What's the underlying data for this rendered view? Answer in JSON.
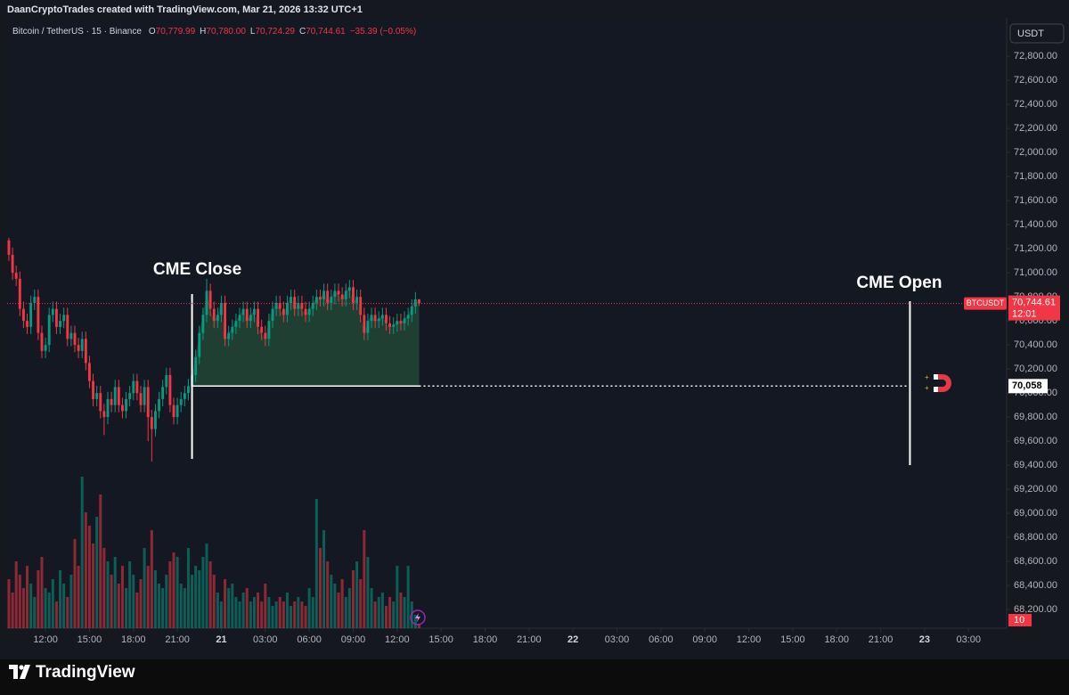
{
  "header": {
    "attribution": "DaanCryptoTrades created with TradingView.com, Mar 21, 2026 13:32 UTC+1",
    "currency_button": "USDT"
  },
  "footer": {
    "logo_text": "TradingView"
  },
  "chart_data": {
    "type": "candlestick",
    "symbol_line": "Bitcoin / TetherUS · 15 · Binance",
    "ohlc_legend": [
      {
        "key": "O",
        "text": "70,779.99"
      },
      {
        "key": "H",
        "text": "70,780.00"
      },
      {
        "key": "L",
        "text": "70,724.29"
      },
      {
        "key": "C",
        "text": "70,744.61"
      }
    ],
    "change": "−35.39 (−0.05%)",
    "up_color": "#089981",
    "down_color": "#f23645",
    "grid": false,
    "xlim": [
      -2.62,
      65.6
    ],
    "ylim": [
      68045,
      73120
    ],
    "volume_lim": [
      0,
      1370
    ],
    "xticks": [
      {
        "value": 0,
        "label": "12:00"
      },
      {
        "value": 3,
        "label": "15:00"
      },
      {
        "value": 6,
        "label": "18:00"
      },
      {
        "value": 9,
        "label": "21:00"
      },
      {
        "value": 12,
        "label": "21"
      },
      {
        "value": 15,
        "label": "03:00"
      },
      {
        "value": 18,
        "label": "06:00"
      },
      {
        "value": 21,
        "label": "09:00"
      },
      {
        "value": 24,
        "label": "12:00"
      },
      {
        "value": 27,
        "label": "15:00"
      },
      {
        "value": 30,
        "label": "18:00"
      },
      {
        "value": 33,
        "label": "21:00"
      },
      {
        "value": 36,
        "label": "22"
      },
      {
        "value": 39,
        "label": "03:00"
      },
      {
        "value": 42,
        "label": "06:00"
      },
      {
        "value": 45,
        "label": "09:00"
      },
      {
        "value": 48,
        "label": "12:00"
      },
      {
        "value": 51,
        "label": "15:00"
      },
      {
        "value": 54,
        "label": "18:00"
      },
      {
        "value": 57,
        "label": "21:00"
      },
      {
        "value": 60,
        "label": "23"
      },
      {
        "value": 63,
        "label": "03:00"
      }
    ],
    "yticks": [
      {
        "value": 68200,
        "label": "68,200.00"
      },
      {
        "value": 68400,
        "label": "68,400.00"
      },
      {
        "value": 68600,
        "label": "68,600.00"
      },
      {
        "value": 68800,
        "label": "68,800.00"
      },
      {
        "value": 69000,
        "label": "69,000.00"
      },
      {
        "value": 69200,
        "label": "69,200.00"
      },
      {
        "value": 69400,
        "label": "69,400.00"
      },
      {
        "value": 69600,
        "label": "69,600.00"
      },
      {
        "value": 69800,
        "label": "69,800.00"
      },
      {
        "value": 70000,
        "label": "70,000.00"
      },
      {
        "value": 70200,
        "label": "70,200.00"
      },
      {
        "value": 70400,
        "label": "70,400.00"
      },
      {
        "value": 70600,
        "label": "70,600.00"
      },
      {
        "value": 70800,
        "label": "70,800.00"
      },
      {
        "value": 71000,
        "label": "71,000.00"
      },
      {
        "value": 71200,
        "label": "71,200.00"
      },
      {
        "value": 71400,
        "label": "71,400.00"
      },
      {
        "value": 71600,
        "label": "71,600.00"
      },
      {
        "value": 71800,
        "label": "71,800.00"
      },
      {
        "value": 72000,
        "label": "72,000.00"
      },
      {
        "value": 72200,
        "label": "72,200.00"
      },
      {
        "value": 72400,
        "label": "72,400.00"
      },
      {
        "value": 72600,
        "label": "72,600.00"
      },
      {
        "value": 72800,
        "label": "72,800.00"
      }
    ],
    "x": [
      -2.5,
      -2.25,
      -2,
      -1.75,
      -1.5,
      -1.25,
      -1,
      -0.75,
      -0.5,
      -0.25,
      0,
      0.25,
      0.5,
      0.75,
      1,
      1.25,
      1.5,
      1.75,
      2,
      2.25,
      2.5,
      2.75,
      3,
      3.25,
      3.5,
      3.75,
      4,
      4.25,
      4.5,
      4.75,
      5,
      5.25,
      5.5,
      5.75,
      6,
      6.25,
      6.5,
      6.75,
      7,
      7.25,
      7.5,
      7.75,
      8,
      8.25,
      8.5,
      8.75,
      9,
      9.25,
      9.5,
      9.75,
      10,
      10.25,
      10.5,
      10.75,
      11,
      11.25,
      11.5,
      11.75,
      12,
      12.25,
      12.5,
      12.75,
      13,
      13.25,
      13.5,
      13.75,
      14,
      14.25,
      14.5,
      14.75,
      15,
      15.25,
      15.5,
      15.75,
      16,
      16.25,
      16.5,
      16.75,
      17,
      17.25,
      17.5,
      17.75,
      18,
      18.25,
      18.5,
      18.75,
      19,
      19.25,
      19.5,
      19.75,
      20,
      20.25,
      20.5,
      20.75,
      21,
      21.25,
      21.5,
      21.75,
      22,
      22.25,
      22.5,
      22.75,
      23,
      23.25,
      23.5,
      23.75,
      24,
      24.25,
      24.5,
      24.75,
      25,
      25.25,
      25.5
    ],
    "open": [
      71270,
      71150,
      71000,
      70950,
      70700,
      70600,
      70550,
      70750,
      70800,
      70500,
      70350,
      70400,
      70650,
      70700,
      70550,
      70600,
      70650,
      70450,
      70500,
      70400,
      70350,
      70450,
      70250,
      70100,
      69950,
      70000,
      69850,
      69800,
      69950,
      69900,
      70050,
      69900,
      69850,
      69950,
      70000,
      70100,
      70000,
      69900,
      70050,
      69800,
      69700,
      69850,
      69950,
      70050,
      70150,
      69900,
      69800,
      69900,
      69950,
      70000,
      70058,
      70150,
      70300,
      70500,
      70650,
      70850,
      70700,
      70600,
      70650,
      70750,
      70450,
      70500,
      70550,
      70600,
      70650,
      70700,
      70600,
      70650,
      70700,
      70550,
      70500,
      70450,
      70600,
      70700,
      70750,
      70700,
      70650,
      70750,
      70800,
      70700,
      70750,
      70700,
      70650,
      70700,
      70750,
      70800,
      70780,
      70850,
      70750,
      70800,
      70850,
      70820,
      70780,
      70850,
      70880,
      70750,
      70800,
      70650,
      70500,
      70600,
      70650,
      70600,
      70620,
      70650,
      70580,
      70550,
      70570,
      70600,
      70580,
      70620,
      70650,
      70720,
      70779.99
    ],
    "high": [
      71290,
      71210,
      71060,
      71010,
      70760,
      70660,
      70810,
      70860,
      70860,
      70560,
      70460,
      70710,
      70760,
      70760,
      70660,
      70710,
      70710,
      70560,
      70560,
      70460,
      70510,
      70510,
      70310,
      70160,
      70060,
      70060,
      69910,
      70010,
      70010,
      70110,
      70110,
      69960,
      70010,
      70060,
      70160,
      70160,
      70060,
      70110,
      70110,
      69860,
      69910,
      70010,
      70110,
      70210,
      70210,
      69960,
      69960,
      70010,
      70060,
      70118,
      70210,
      70360,
      70560,
      70710,
      70950,
      70910,
      70760,
      70710,
      70810,
      70810,
      70560,
      70610,
      70660,
      70710,
      70760,
      70760,
      70710,
      70760,
      70760,
      70610,
      70560,
      70660,
      70760,
      70810,
      70810,
      70760,
      70810,
      70860,
      70860,
      70810,
      70810,
      70760,
      70760,
      70810,
      70860,
      70860,
      70910,
      70910,
      70860,
      70910,
      70910,
      70880,
      70910,
      70940,
      70940,
      70860,
      70860,
      70710,
      70660,
      70710,
      70710,
      70680,
      70710,
      70710,
      70640,
      70630,
      70660,
      70660,
      70680,
      70710,
      70780,
      70840,
      70780
    ],
    "low": [
      71100,
      70940,
      70890,
      70640,
      70540,
      70490,
      70490,
      70690,
      70440,
      70290,
      70290,
      70340,
      70590,
      70490,
      70490,
      70540,
      70390,
      70390,
      70340,
      70290,
      70290,
      70190,
      70040,
      69890,
      69890,
      69790,
      69650,
      69740,
      69840,
      69840,
      69840,
      69790,
      69790,
      69890,
      69940,
      69940,
      69840,
      69840,
      69600,
      69430,
      69640,
      69790,
      69890,
      69990,
      69840,
      69740,
      69740,
      69840,
      69890,
      69940,
      69998,
      70090,
      70240,
      70440,
      70590,
      70640,
      70540,
      70540,
      70590,
      70390,
      70390,
      70440,
      70490,
      70540,
      70590,
      70540,
      70540,
      70590,
      70490,
      70440,
      70390,
      70390,
      70540,
      70640,
      70640,
      70590,
      70590,
      70690,
      70640,
      70640,
      70640,
      70590,
      70590,
      70640,
      70690,
      70720,
      70720,
      70690,
      70690,
      70740,
      70760,
      70720,
      70720,
      70790,
      70690,
      70690,
      70590,
      70440,
      70440,
      70540,
      70540,
      70540,
      70560,
      70520,
      70490,
      70490,
      70510,
      70520,
      70520,
      70560,
      70590,
      70660,
      70724.29
    ],
    "close": [
      71150,
      71000,
      70950,
      70700,
      70600,
      70550,
      70750,
      70800,
      70500,
      70350,
      70400,
      70650,
      70700,
      70550,
      70600,
      70650,
      70450,
      70500,
      70400,
      70350,
      70450,
      70250,
      70100,
      69950,
      70000,
      69850,
      69800,
      69950,
      69900,
      70050,
      69900,
      69850,
      69950,
      70000,
      70100,
      70000,
      69900,
      70050,
      69800,
      69700,
      69850,
      69950,
      70050,
      70150,
      69900,
      69800,
      69900,
      69950,
      70000,
      70058,
      70150,
      70300,
      70500,
      70650,
      70850,
      70700,
      70600,
      70650,
      70750,
      70450,
      70500,
      70550,
      70600,
      70650,
      70700,
      70600,
      70650,
      70700,
      70550,
      70500,
      70450,
      70600,
      70700,
      70750,
      70700,
      70650,
      70750,
      70800,
      70700,
      70750,
      70700,
      70650,
      70700,
      70750,
      70800,
      70780,
      70850,
      70750,
      70800,
      70850,
      70820,
      70780,
      70850,
      70880,
      70750,
      70800,
      70650,
      70500,
      70600,
      70650,
      70600,
      70620,
      70650,
      70580,
      70550,
      70570,
      70600,
      70580,
      70620,
      70650,
      70720,
      70779.99,
      70744.61
    ],
    "volume": [
      110,
      80,
      150,
      120,
      90,
      140,
      100,
      70,
      130,
      160,
      90,
      80,
      110,
      60,
      130,
      100,
      70,
      120,
      200,
      140,
      340,
      260,
      230,
      190,
      250,
      300,
      180,
      150,
      120,
      160,
      100,
      140,
      90,
      150,
      120,
      80,
      110,
      180,
      140,
      220,
      130,
      100,
      90,
      120,
      150,
      170,
      160,
      100,
      90,
      180,
      120,
      140,
      130,
      160,
      190,
      150,
      120,
      80,
      60,
      110,
      90,
      100,
      70,
      60,
      80,
      90,
      60,
      70,
      80,
      60,
      100,
      70,
      50,
      60,
      70,
      60,
      80,
      50,
      60,
      70,
      60,
      50,
      90,
      70,
      290,
      180,
      220,
      150,
      120,
      100,
      80,
      110,
      70,
      90,
      130,
      150,
      110,
      220,
      160,
      90,
      60,
      70,
      80,
      50,
      70,
      60,
      140,
      80,
      70,
      140,
      60,
      30,
      10
    ],
    "annotations": [
      {
        "label": "CME Close",
        "x": 10
      },
      {
        "label": "CME Open",
        "x": 59
      }
    ],
    "gap_level": {
      "value": 70058,
      "label": "70,058"
    },
    "last_price": {
      "value": 70744.61,
      "label": "70,744.61",
      "symbol": "BTCUSDT",
      "countdown": "12:01"
    }
  }
}
